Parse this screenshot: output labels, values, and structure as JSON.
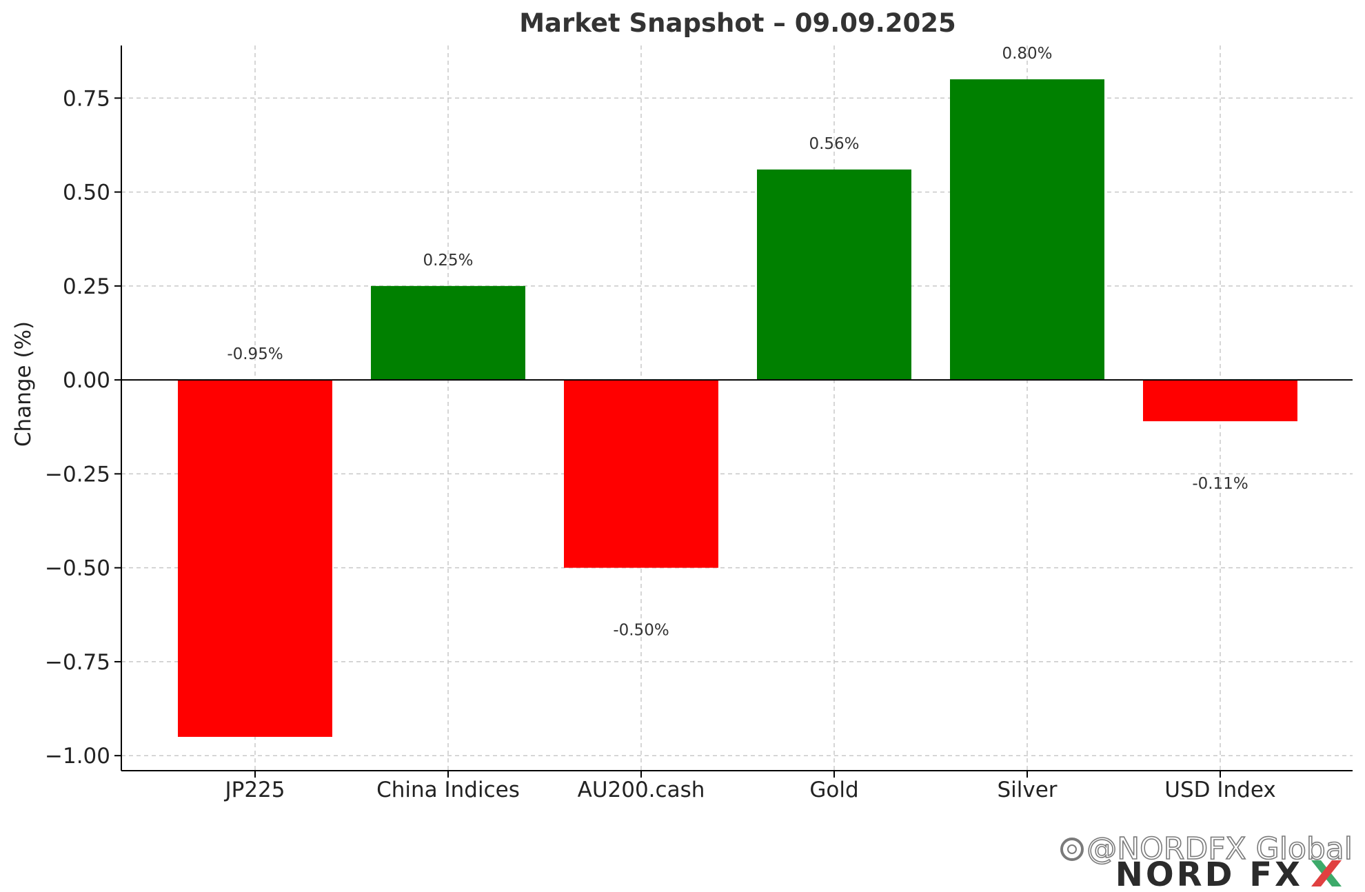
{
  "chart_data": {
    "type": "bar",
    "title": "Market Snapshot – 09.09.2025",
    "xlabel": "",
    "ylabel": "Change (%)",
    "categories": [
      "JP225",
      "China Indices",
      "AU200.cash",
      "Gold",
      "Silver",
      "USD Index"
    ],
    "values": [
      -0.95,
      0.25,
      -0.5,
      0.56,
      0.8,
      -0.11
    ],
    "data_labels": [
      "-0.95%",
      "0.25%",
      "-0.50%",
      "0.56%",
      "0.80%",
      "-0.11%"
    ],
    "ylim": [
      -1.04,
      0.89
    ],
    "yticks": [
      -1.0,
      -0.75,
      -0.5,
      -0.25,
      0.0,
      0.25,
      0.5,
      0.75
    ],
    "ytick_labels": [
      "−1.00",
      "−0.75",
      "−0.50",
      "−0.25",
      "0.00",
      "0.25",
      "0.50",
      "0.75"
    ],
    "grid": true,
    "colors": {
      "positive": "#008000",
      "negative": "#ff0000",
      "grid": "#c8c8c8",
      "axis": "#000000"
    }
  },
  "watermark": {
    "handle": "@NORDFX Global",
    "handle_icon": "social-app-icon",
    "brand": "NORD FX",
    "brand_colors": {
      "dark": "#2b2b2b",
      "red": "#e04040",
      "green": "#3daa6a"
    }
  }
}
